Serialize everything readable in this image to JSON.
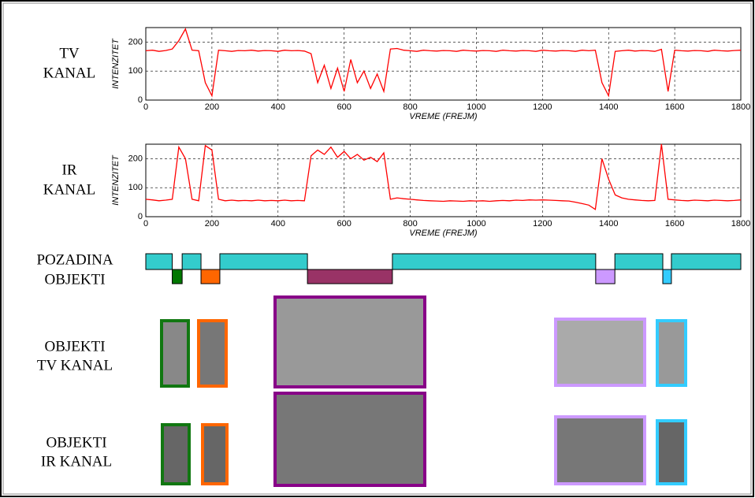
{
  "chart_data": [
    {
      "type": "line",
      "row_label": [
        "TV",
        "KANAL"
      ],
      "xlabel": "VREME (FREJM)",
      "ylabel": "INTENZITET",
      "xlim": [
        0,
        1800
      ],
      "ylim": [
        0,
        250
      ],
      "xticks": [
        0,
        200,
        400,
        600,
        800,
        1000,
        1200,
        1400,
        1600,
        1800
      ],
      "yticks": [
        0,
        100,
        200
      ],
      "grid": true,
      "x": [
        0,
        20,
        40,
        60,
        80,
        100,
        120,
        140,
        160,
        180,
        200,
        220,
        240,
        260,
        280,
        300,
        320,
        340,
        360,
        380,
        400,
        420,
        440,
        460,
        480,
        500,
        520,
        540,
        560,
        580,
        600,
        620,
        640,
        660,
        680,
        700,
        720,
        740,
        760,
        780,
        800,
        820,
        840,
        860,
        880,
        900,
        920,
        940,
        960,
        980,
        1000,
        1020,
        1040,
        1060,
        1080,
        1100,
        1120,
        1140,
        1160,
        1180,
        1200,
        1220,
        1240,
        1260,
        1280,
        1300,
        1320,
        1340,
        1360,
        1380,
        1400,
        1420,
        1440,
        1460,
        1480,
        1500,
        1520,
        1540,
        1560,
        1580,
        1600,
        1620,
        1640,
        1660,
        1680,
        1700,
        1720,
        1740,
        1760,
        1780,
        1800
      ],
      "series": [
        {
          "color": "#ff0000",
          "values": [
            170,
            172,
            168,
            171,
            176,
            205,
            245,
            172,
            170,
            60,
            15,
            172,
            170,
            168,
            171,
            170,
            172,
            169,
            171,
            170,
            168,
            172,
            170,
            171,
            169,
            160,
            60,
            120,
            40,
            110,
            30,
            140,
            60,
            100,
            40,
            90,
            30,
            176,
            178,
            172,
            170,
            168,
            172,
            170,
            169,
            171,
            170,
            168,
            172,
            170,
            169,
            171,
            170,
            168,
            172,
            170,
            169,
            171,
            170,
            168,
            172,
            170,
            169,
            171,
            170,
            168,
            172,
            170,
            172,
            60,
            15,
            168,
            170,
            172,
            169,
            171,
            170,
            168,
            175,
            30,
            172,
            170,
            169,
            171,
            170,
            168,
            172,
            170,
            169,
            171,
            172
          ]
        }
      ]
    },
    {
      "type": "line",
      "row_label": [
        "IR",
        "KANAL"
      ],
      "xlabel": "VREME (FREJM)",
      "ylabel": "INTENZITET",
      "xlim": [
        0,
        1800
      ],
      "ylim": [
        0,
        250
      ],
      "xticks": [
        0,
        200,
        400,
        600,
        800,
        1000,
        1200,
        1400,
        1600,
        1800
      ],
      "yticks": [
        0,
        100,
        200
      ],
      "grid": true,
      "x": [
        0,
        20,
        40,
        60,
        80,
        100,
        120,
        140,
        160,
        180,
        200,
        220,
        240,
        260,
        280,
        300,
        320,
        340,
        360,
        380,
        400,
        420,
        440,
        460,
        480,
        500,
        520,
        540,
        560,
        580,
        600,
        620,
        640,
        660,
        680,
        700,
        720,
        740,
        760,
        780,
        800,
        820,
        840,
        860,
        880,
        900,
        920,
        940,
        960,
        980,
        1000,
        1020,
        1040,
        1060,
        1080,
        1100,
        1120,
        1140,
        1160,
        1180,
        1200,
        1220,
        1240,
        1260,
        1280,
        1300,
        1320,
        1340,
        1360,
        1380,
        1400,
        1420,
        1440,
        1460,
        1480,
        1500,
        1520,
        1540,
        1560,
        1580,
        1600,
        1620,
        1640,
        1660,
        1680,
        1700,
        1720,
        1740,
        1760,
        1780,
        1800
      ],
      "series": [
        {
          "color": "#ff0000",
          "values": [
            60,
            58,
            55,
            57,
            60,
            240,
            200,
            60,
            55,
            245,
            230,
            60,
            55,
            57,
            55,
            56,
            55,
            57,
            55,
            56,
            55,
            57,
            55,
            56,
            55,
            210,
            230,
            215,
            240,
            205,
            225,
            200,
            215,
            195,
            205,
            190,
            220,
            60,
            65,
            62,
            60,
            58,
            56,
            55,
            54,
            53,
            55,
            54,
            53,
            55,
            54,
            55,
            53,
            55,
            56,
            55,
            57,
            56,
            58,
            57,
            58,
            57,
            56,
            55,
            54,
            50,
            45,
            40,
            25,
            200,
            130,
            75,
            65,
            60,
            58,
            56,
            55,
            56,
            250,
            60,
            58,
            56,
            55,
            57,
            56,
            55,
            57,
            56,
            55,
            56,
            58
          ]
        }
      ]
    }
  ],
  "timeline": {
    "labels": [
      "POZADINA",
      "OBJEKTI"
    ],
    "background": {
      "color": "#33cccc",
      "segments": [
        [
          0,
          80
        ],
        [
          110,
          167
        ],
        [
          224,
          489
        ],
        [
          746,
          1361
        ],
        [
          1419,
          1564
        ],
        [
          1590,
          1800
        ]
      ]
    },
    "objects": [
      {
        "start": 80,
        "end": 110,
        "color": "#007700"
      },
      {
        "start": 167,
        "end": 224,
        "color": "#ff6600"
      },
      {
        "start": 489,
        "end": 746,
        "color": "#993366"
      },
      {
        "start": 1361,
        "end": 1419,
        "color": "#cc99ff"
      },
      {
        "start": 1564,
        "end": 1590,
        "color": "#33ccff"
      }
    ]
  },
  "thumbnails": {
    "tv_label": [
      "OBJEKTI",
      "TV KANAL"
    ],
    "ir_label": [
      "OBJEKTI",
      "IR KANAL"
    ]
  }
}
